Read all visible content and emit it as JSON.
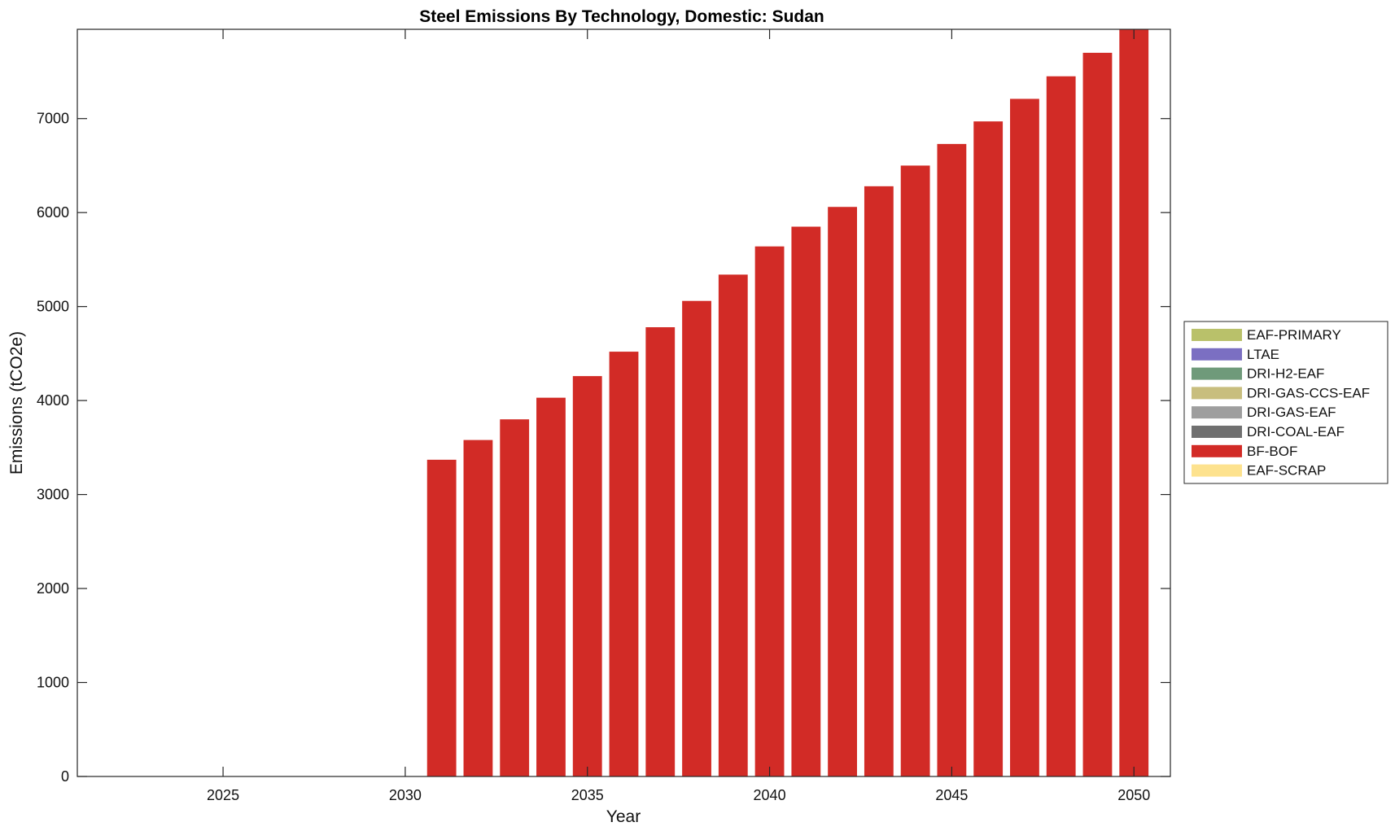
{
  "chart_data": {
    "type": "bar",
    "stacked": true,
    "title": "Steel Emissions By Technology, Domestic: Sudan",
    "xlabel": "Year",
    "ylabel": "Emissions (tCO2e)",
    "xlim": [
      2021,
      2051
    ],
    "ylim": [
      0,
      7950
    ],
    "x_ticks": [
      2025,
      2030,
      2035,
      2040,
      2045,
      2050
    ],
    "y_ticks": [
      0,
      1000,
      2000,
      3000,
      4000,
      5000,
      6000,
      7000
    ],
    "grid": false,
    "legend_position": "right",
    "x": [
      2031,
      2032,
      2033,
      2034,
      2035,
      2036,
      2037,
      2038,
      2039,
      2040,
      2041,
      2042,
      2043,
      2044,
      2045,
      2046,
      2047,
      2048,
      2049,
      2050
    ],
    "series": [
      {
        "name": "EAF-PRIMARY",
        "color": "#b9c16a",
        "values": [
          0,
          0,
          0,
          0,
          0,
          0,
          0,
          0,
          0,
          0,
          0,
          0,
          0,
          0,
          0,
          0,
          0,
          0,
          0,
          0
        ]
      },
      {
        "name": "LTAE",
        "color": "#7b6fc2",
        "values": [
          0,
          0,
          0,
          0,
          0,
          0,
          0,
          0,
          0,
          0,
          0,
          0,
          0,
          0,
          0,
          0,
          0,
          0,
          0,
          0
        ]
      },
      {
        "name": "DRI-H2-EAF",
        "color": "#6f9a7a",
        "values": [
          0,
          0,
          0,
          0,
          0,
          0,
          0,
          0,
          0,
          0,
          0,
          0,
          0,
          0,
          0,
          0,
          0,
          0,
          0,
          0
        ]
      },
      {
        "name": "DRI-GAS-CCS-EAF",
        "color": "#c8be7e",
        "values": [
          0,
          0,
          0,
          0,
          0,
          0,
          0,
          0,
          0,
          0,
          0,
          0,
          0,
          0,
          0,
          0,
          0,
          0,
          0,
          0
        ]
      },
      {
        "name": "DRI-GAS-EAF",
        "color": "#9e9e9e",
        "values": [
          0,
          0,
          0,
          0,
          0,
          0,
          0,
          0,
          0,
          0,
          0,
          0,
          0,
          0,
          0,
          0,
          0,
          0,
          0,
          0
        ]
      },
      {
        "name": "DRI-COAL-EAF",
        "color": "#707070",
        "values": [
          0,
          0,
          0,
          0,
          0,
          0,
          0,
          0,
          0,
          0,
          0,
          0,
          0,
          0,
          0,
          0,
          0,
          0,
          0,
          0
        ]
      },
      {
        "name": "BF-BOF",
        "color": "#d22b26",
        "values": [
          3370,
          3580,
          3800,
          4030,
          4260,
          4520,
          4780,
          5060,
          5340,
          5640,
          5850,
          6060,
          6280,
          6500,
          6730,
          6970,
          7210,
          7450,
          7700,
          7950
        ]
      },
      {
        "name": "EAF-SCRAP",
        "color": "#fde28e",
        "values": [
          0,
          0,
          0,
          0,
          0,
          0,
          0,
          0,
          0,
          0,
          0,
          0,
          0,
          0,
          0,
          0,
          0,
          0,
          0,
          0
        ]
      }
    ]
  }
}
